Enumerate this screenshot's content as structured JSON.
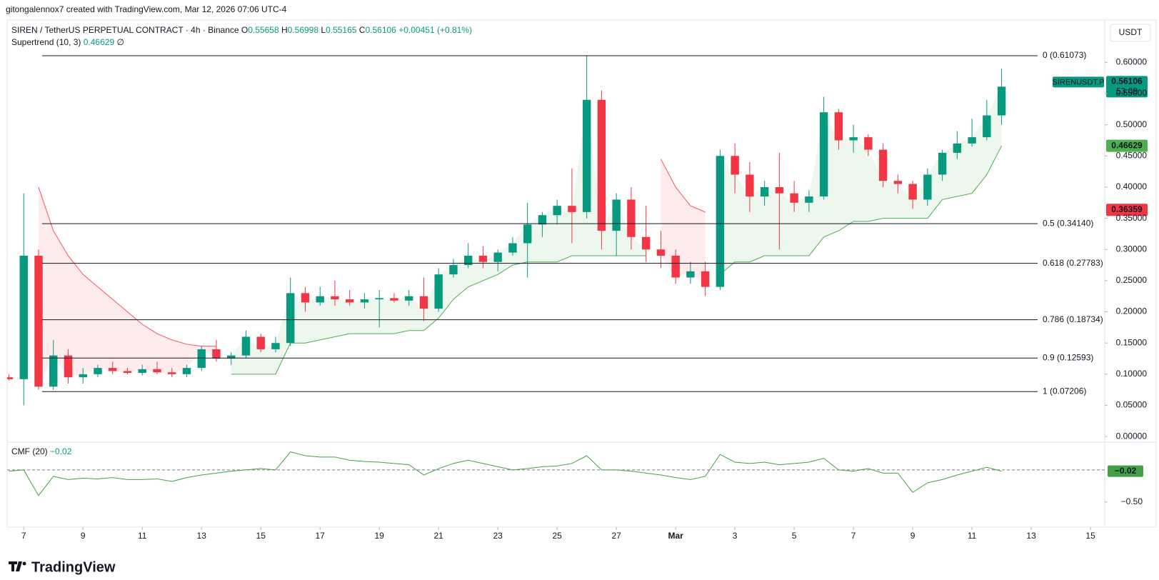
{
  "header": {
    "attribution": "gitongalennox7 created with TradingView.com, Mar 12, 2026 07:06 UTC-4"
  },
  "chart_data": {
    "type": "candlestick",
    "title": "SIREN / TetherUS PERPETUAL CONTRACT · 4h · Binance",
    "legend_values": [
      {
        "label": "O",
        "value": 0.55658
      },
      {
        "label": "H",
        "value": 0.56998
      },
      {
        "label": "L",
        "value": 0.55165
      },
      {
        "label": "C",
        "value": 0.56106
      }
    ],
    "change": 0.00451,
    "change_label": "+0.00451",
    "change_pct": 0.81,
    "change_pct_label": "(+0.81%)",
    "currency": "USDT",
    "up_color": "#089981",
    "down_color": "#f23645",
    "x": [
      -0.5,
      0,
      0.5,
      1,
      1.5,
      2,
      2.5,
      3,
      3.5,
      4,
      4.5,
      5,
      5.5,
      6,
      6.5,
      7,
      7.5,
      8,
      8.5,
      9,
      9.5,
      10,
      10.5,
      11,
      11.5,
      12,
      12.5,
      13,
      13.5,
      14,
      14.5,
      15,
      15.5,
      16,
      16.5,
      17,
      17.5,
      18,
      18.5,
      19,
      19.5,
      20,
      20.5,
      21,
      21.5,
      22,
      22.5,
      23,
      23.5,
      24,
      24.5,
      25,
      25.5,
      26,
      26.5,
      27,
      27.5,
      28,
      28.5,
      29,
      29.5,
      30,
      30.5,
      31,
      31.5,
      32,
      32.5,
      33
    ],
    "xlim": [
      -0.56,
      36.48
    ],
    "xticks": [
      {
        "value": 0,
        "label": "7"
      },
      {
        "value": 2,
        "label": "9"
      },
      {
        "value": 4,
        "label": "11"
      },
      {
        "value": 6,
        "label": "13"
      },
      {
        "value": 8,
        "label": "15"
      },
      {
        "value": 10,
        "label": "17"
      },
      {
        "value": 12,
        "label": "19"
      },
      {
        "value": 14,
        "label": "21"
      },
      {
        "value": 16,
        "label": "23"
      },
      {
        "value": 18,
        "label": "25"
      },
      {
        "value": 20,
        "label": "27"
      },
      {
        "value": 22,
        "label": "Mar"
      },
      {
        "value": 24,
        "label": "3"
      },
      {
        "value": 26,
        "label": "5"
      },
      {
        "value": 28,
        "label": "7"
      },
      {
        "value": 30,
        "label": "9"
      },
      {
        "value": 32,
        "label": "11"
      },
      {
        "value": 34,
        "label": "13"
      },
      {
        "value": 36,
        "label": "15"
      }
    ],
    "ohlc": [
      [
        0.095,
        0.1,
        0.09,
        0.092
      ],
      [
        0.092,
        0.39,
        0.05,
        0.29
      ],
      [
        0.29,
        0.3,
        0.075,
        0.08
      ],
      [
        0.08,
        0.155,
        0.075,
        0.13
      ],
      [
        0.13,
        0.14,
        0.085,
        0.095
      ],
      [
        0.095,
        0.11,
        0.085,
        0.1
      ],
      [
        0.1,
        0.115,
        0.095,
        0.11
      ],
      [
        0.11,
        0.12,
        0.1,
        0.105
      ],
      [
        0.105,
        0.11,
        0.1,
        0.102
      ],
      [
        0.102,
        0.115,
        0.098,
        0.108
      ],
      [
        0.108,
        0.12,
        0.1,
        0.103
      ],
      [
        0.103,
        0.11,
        0.095,
        0.1
      ],
      [
        0.1,
        0.115,
        0.095,
        0.11
      ],
      [
        0.11,
        0.145,
        0.105,
        0.14
      ],
      [
        0.14,
        0.155,
        0.12,
        0.125
      ],
      [
        0.125,
        0.135,
        0.115,
        0.13
      ],
      [
        0.13,
        0.17,
        0.125,
        0.16
      ],
      [
        0.16,
        0.165,
        0.135,
        0.14
      ],
      [
        0.14,
        0.16,
        0.135,
        0.15
      ],
      [
        0.15,
        0.255,
        0.145,
        0.23
      ],
      [
        0.23,
        0.24,
        0.2,
        0.215
      ],
      [
        0.215,
        0.24,
        0.21,
        0.225
      ],
      [
        0.225,
        0.25,
        0.21,
        0.22
      ],
      [
        0.22,
        0.235,
        0.21,
        0.215
      ],
      [
        0.215,
        0.23,
        0.205,
        0.22
      ],
      [
        0.22,
        0.235,
        0.175,
        0.222
      ],
      [
        0.222,
        0.23,
        0.215,
        0.218
      ],
      [
        0.218,
        0.235,
        0.21,
        0.225
      ],
      [
        0.225,
        0.255,
        0.185,
        0.205
      ],
      [
        0.205,
        0.27,
        0.2,
        0.26
      ],
      [
        0.26,
        0.285,
        0.255,
        0.275
      ],
      [
        0.275,
        0.31,
        0.27,
        0.29
      ],
      [
        0.29,
        0.305,
        0.27,
        0.28
      ],
      [
        0.28,
        0.3,
        0.265,
        0.295
      ],
      [
        0.295,
        0.32,
        0.29,
        0.31
      ],
      [
        0.31,
        0.375,
        0.255,
        0.34
      ],
      [
        0.34,
        0.36,
        0.32,
        0.355
      ],
      [
        0.355,
        0.38,
        0.34,
        0.37
      ],
      [
        0.37,
        0.43,
        0.31,
        0.36
      ],
      [
        0.36,
        0.61073,
        0.35,
        0.54
      ],
      [
        0.54,
        0.555,
        0.3,
        0.33
      ],
      [
        0.33,
        0.39,
        0.29,
        0.38
      ],
      [
        0.38,
        0.4,
        0.3,
        0.32
      ],
      [
        0.32,
        0.37,
        0.28,
        0.3
      ],
      [
        0.3,
        0.33,
        0.27,
        0.29
      ],
      [
        0.29,
        0.3,
        0.245,
        0.255
      ],
      [
        0.255,
        0.28,
        0.245,
        0.265
      ],
      [
        0.265,
        0.28,
        0.225,
        0.24
      ],
      [
        0.24,
        0.46,
        0.235,
        0.45
      ],
      [
        0.45,
        0.47,
        0.39,
        0.42
      ],
      [
        0.42,
        0.44,
        0.36,
        0.385
      ],
      [
        0.385,
        0.41,
        0.37,
        0.4
      ],
      [
        0.4,
        0.455,
        0.3,
        0.39
      ],
      [
        0.39,
        0.41,
        0.36,
        0.375
      ],
      [
        0.375,
        0.395,
        0.36,
        0.385
      ],
      [
        0.385,
        0.545,
        0.38,
        0.52
      ],
      [
        0.52,
        0.525,
        0.46,
        0.475
      ],
      [
        0.475,
        0.5,
        0.455,
        0.48
      ],
      [
        0.48,
        0.485,
        0.45,
        0.46
      ],
      [
        0.46,
        0.47,
        0.4,
        0.41
      ],
      [
        0.41,
        0.42,
        0.39,
        0.405
      ],
      [
        0.405,
        0.41,
        0.365,
        0.38
      ],
      [
        0.38,
        0.43,
        0.37,
        0.42
      ],
      [
        0.42,
        0.46,
        0.41,
        0.455
      ],
      [
        0.455,
        0.49,
        0.445,
        0.47
      ],
      [
        0.47,
        0.51,
        0.465,
        0.48
      ],
      [
        0.48,
        0.54,
        0.475,
        0.515
      ],
      [
        0.515,
        0.59,
        0.5,
        0.56106
      ]
    ],
    "ylim": [
      -0.009,
      0.668
    ],
    "yticks": [
      {
        "value": 0.6,
        "label": "0.60000"
      },
      {
        "value": 0.55,
        "label": "0.55000"
      },
      {
        "value": 0.5,
        "label": "0.50000"
      },
      {
        "value": 0.45,
        "label": "0.45000"
      },
      {
        "value": 0.4,
        "label": "0.40000"
      },
      {
        "value": 0.35,
        "label": "0.35000"
      },
      {
        "value": 0.3,
        "label": "0.30000"
      },
      {
        "value": 0.25,
        "label": "0.25000"
      },
      {
        "value": 0.2,
        "label": "0.20000"
      },
      {
        "value": 0.15,
        "label": "0.15000"
      },
      {
        "value": 0.1,
        "label": "0.10000"
      },
      {
        "value": 0.05,
        "label": "0.05000"
      },
      {
        "value": 0,
        "label": "0.00000"
      }
    ],
    "supertrend": {
      "label": "Supertrend (10, 3)",
      "value": 0.46629,
      "extra": "∅",
      "up_color": "#4caf50",
      "down_color": "#f7525f",
      "up": [
        null,
        null,
        null,
        null,
        null,
        null,
        null,
        null,
        null,
        null,
        null,
        null,
        null,
        null,
        null,
        0.1,
        0.1,
        0.1,
        0.1,
        0.15,
        0.15,
        0.155,
        0.16,
        0.165,
        0.165,
        0.165,
        0.165,
        0.17,
        0.17,
        0.19,
        0.22,
        0.24,
        0.25,
        0.26,
        0.275,
        0.28,
        0.28,
        0.28,
        0.29,
        0.29,
        0.29,
        0.29,
        0.29,
        0.29,
        null,
        null,
        null,
        null,
        0.26,
        0.28,
        0.28,
        0.29,
        0.29,
        0.29,
        0.29,
        0.32,
        0.33,
        0.345,
        0.345,
        0.35,
        0.35,
        0.35,
        0.35,
        0.38,
        0.385,
        0.39,
        0.42,
        0.46629
      ],
      "down": [
        null,
        null,
        0.4,
        0.33,
        0.29,
        0.26,
        0.24,
        0.22,
        0.2,
        0.18,
        0.165,
        0.155,
        0.148,
        0.145,
        0.145,
        null,
        null,
        null,
        null,
        null,
        null,
        null,
        null,
        null,
        null,
        null,
        null,
        null,
        null,
        null,
        null,
        null,
        null,
        null,
        null,
        null,
        null,
        null,
        null,
        null,
        null,
        null,
        null,
        null,
        0.445,
        0.4,
        0.37,
        0.36,
        null,
        null,
        null,
        null,
        null,
        null,
        null,
        null,
        null,
        null,
        null,
        null,
        null,
        null,
        null,
        null,
        null,
        null,
        null,
        null
      ]
    },
    "fib": [
      {
        "label": "0 (0.61073)",
        "value": 0.61073
      },
      {
        "label": "0.5 (0.34140)",
        "value": 0.3414
      },
      {
        "label": "0.618 (0.27783)",
        "value": 0.27783
      },
      {
        "label": "0.786 (0.18734)",
        "value": 0.18734
      },
      {
        "label": "0.9 (0.12593)",
        "value": 0.12593
      },
      {
        "label": "1 (0.07206)",
        "value": 0.07206
      }
    ],
    "badges": {
      "symbol": "SIRENUSDT.P",
      "price": 0.56106,
      "countdown": "53:09",
      "supertrend": 0.46629,
      "other": 0.36359
    },
    "cmf": {
      "label": "CMF (20)",
      "value": -0.02,
      "value_label": "−0.02",
      "level": 0,
      "color": "#43a047",
      "ylim": [
        -0.89,
        0.42
      ],
      "yticks": [
        {
          "value": -0.5,
          "label": "−0.50"
        }
      ],
      "values": [
        -0.02,
        0.0,
        -0.4,
        -0.1,
        -0.15,
        -0.13,
        -0.14,
        -0.12,
        -0.15,
        -0.15,
        -0.14,
        -0.18,
        -0.12,
        -0.08,
        -0.05,
        -0.02,
        0.0,
        0.02,
        0.0,
        0.28,
        0.22,
        0.2,
        0.2,
        0.15,
        0.13,
        0.12,
        0.1,
        0.08,
        -0.08,
        0.02,
        0.1,
        0.15,
        0.1,
        0.05,
        0.0,
        0.02,
        0.05,
        0.06,
        0.1,
        0.22,
        0.0,
        0.0,
        -0.02,
        -0.05,
        -0.08,
        -0.12,
        -0.15,
        -0.1,
        0.24,
        0.12,
        0.1,
        0.12,
        0.08,
        0.1,
        0.12,
        0.18,
        0.0,
        -0.02,
        0.02,
        -0.05,
        -0.05,
        -0.35,
        -0.2,
        -0.15,
        -0.08,
        -0.02,
        0.04,
        -0.02
      ]
    }
  },
  "footer": {
    "brand": "TradingView"
  }
}
